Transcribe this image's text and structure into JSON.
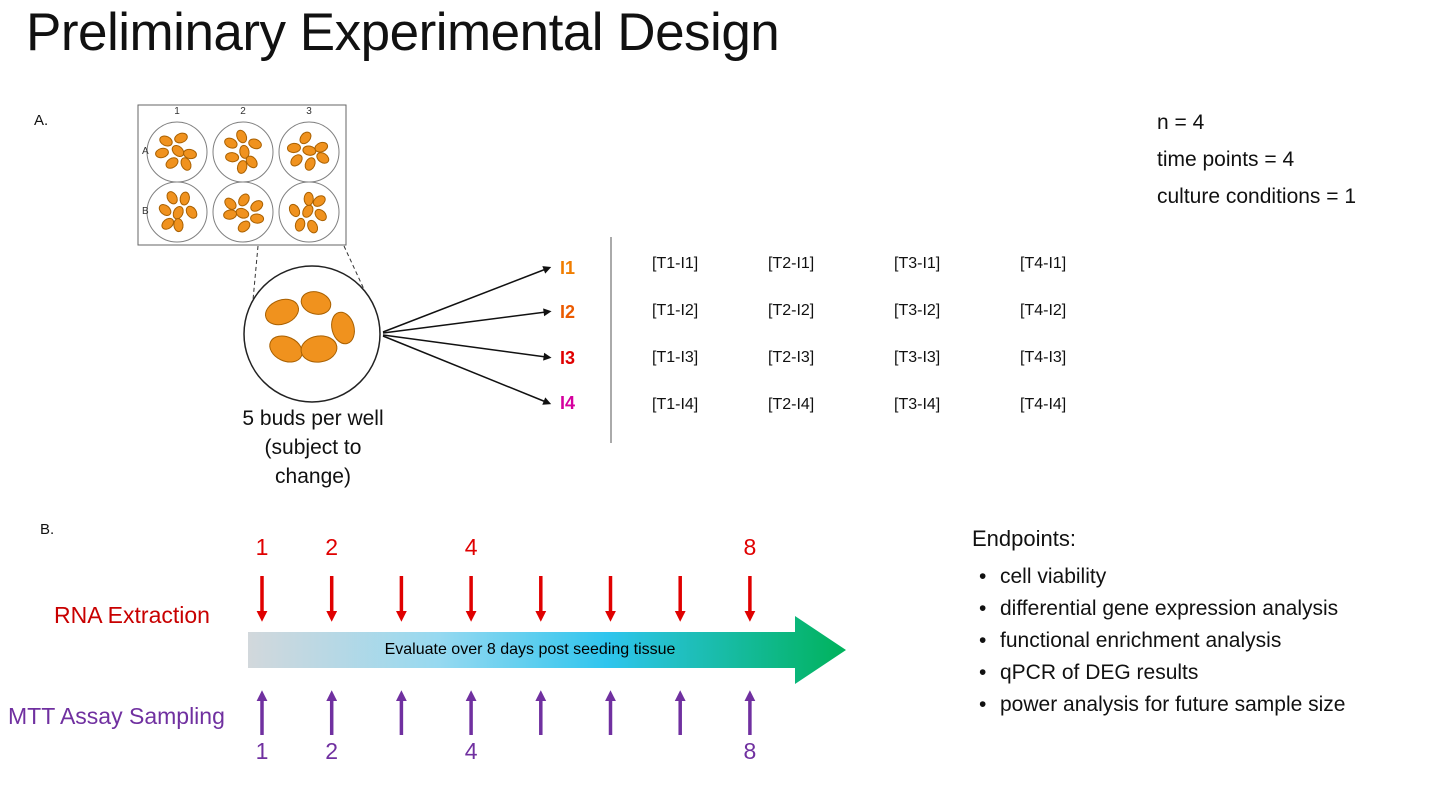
{
  "title": "Preliminary Experimental Design",
  "panel_a": {
    "label": "A.",
    "plate": {
      "col_labels": [
        "1",
        "2",
        "3"
      ],
      "row_labels": [
        "A",
        "B"
      ]
    },
    "bud_color": "#F0921E",
    "bud_outline": "#A96000",
    "caption": "5 buds per well (subject to change)",
    "isolates": [
      {
        "label": "I1",
        "color": "#F07D00"
      },
      {
        "label": "I2",
        "color": "#EB5A00"
      },
      {
        "label": "I3",
        "color": "#E00000"
      },
      {
        "label": "I4",
        "color": "#D5009E"
      }
    ],
    "matrix": [
      [
        "[T1-I1]",
        "[T2-I1]",
        "[T3-I1]",
        "[T4-I1]"
      ],
      [
        "[T1-I2]",
        "[T2-I2]",
        "[T3-I2]",
        "[T4-I2]"
      ],
      [
        "[T1-I3]",
        "[T2-I3]",
        "[T3-I3]",
        "[T4-I3]"
      ],
      [
        "[T1-I4]",
        "[T2-I4]",
        "[T3-I4]",
        "[T4-I4]"
      ]
    ]
  },
  "stats": {
    "lines": [
      "n = 4",
      "time points = 4",
      "culture conditions = 1"
    ]
  },
  "panel_b": {
    "label": "B.",
    "rna_label": "RNA Extraction",
    "mtt_label": "MTT Assay Sampling",
    "arrow_text": "Evaluate over 8 days post seeding tissue",
    "tick_count": 8,
    "labeled_tick_indices": [
      0,
      1,
      3,
      7
    ],
    "top_tick_labels": [
      "1",
      "2",
      "4",
      "8"
    ],
    "bottom_tick_labels": [
      "1",
      "2",
      "4",
      "8"
    ],
    "gradient": [
      "#D2D8DC",
      "#96D9F0",
      "#2FC5EE",
      "#00B25B"
    ],
    "colors": {
      "rna": "#C80000",
      "ticks_top": "#E00000",
      "mtt": "#7030A0"
    }
  },
  "endpoints": {
    "title": "Endpoints:",
    "items": [
      "cell viability",
      "differential gene expression analysis",
      "functional enrichment analysis",
      "qPCR of DEG results",
      "power analysis for future sample size"
    ]
  }
}
